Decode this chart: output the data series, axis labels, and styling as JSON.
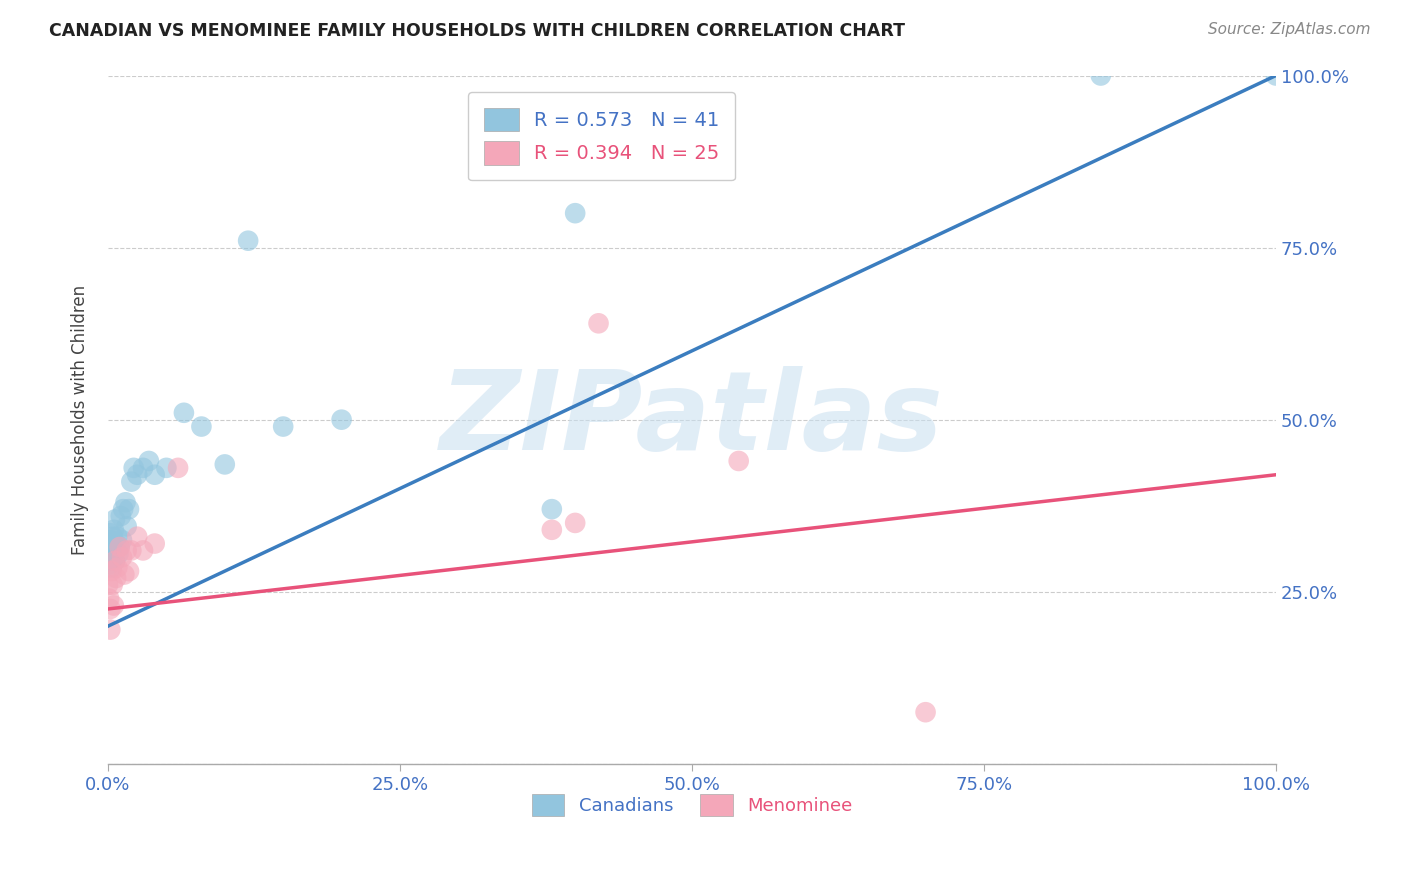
{
  "title": "CANADIAN VS MENOMINEE FAMILY HOUSEHOLDS WITH CHILDREN CORRELATION CHART",
  "source": "Source: ZipAtlas.com",
  "ylabel": "Family Households with Children",
  "watermark": "ZIPatlas",
  "canadians_x": [
    0.0,
    0.001,
    0.001,
    0.002,
    0.002,
    0.002,
    0.003,
    0.003,
    0.004,
    0.004,
    0.005,
    0.005,
    0.006,
    0.006,
    0.007,
    0.008,
    0.009,
    0.01,
    0.011,
    0.012,
    0.013,
    0.015,
    0.016,
    0.018,
    0.02,
    0.022,
    0.025,
    0.03,
    0.035,
    0.04,
    0.05,
    0.065,
    0.08,
    0.1,
    0.12,
    0.15,
    0.2,
    0.38,
    0.4,
    0.85,
    1.0
  ],
  "canadians_y": [
    0.31,
    0.32,
    0.29,
    0.335,
    0.3,
    0.325,
    0.285,
    0.315,
    0.33,
    0.295,
    0.34,
    0.31,
    0.355,
    0.295,
    0.32,
    0.33,
    0.305,
    0.315,
    0.36,
    0.325,
    0.37,
    0.38,
    0.345,
    0.37,
    0.41,
    0.43,
    0.42,
    0.43,
    0.44,
    0.42,
    0.43,
    0.51,
    0.49,
    0.435,
    0.76,
    0.49,
    0.5,
    0.37,
    0.8,
    1.0,
    1.0
  ],
  "menominee_x": [
    0.0,
    0.001,
    0.002,
    0.002,
    0.003,
    0.004,
    0.005,
    0.006,
    0.007,
    0.008,
    0.01,
    0.012,
    0.014,
    0.016,
    0.018,
    0.02,
    0.025,
    0.03,
    0.04,
    0.06,
    0.38,
    0.4,
    0.42,
    0.54,
    0.7
  ],
  "menominee_y": [
    0.26,
    0.24,
    0.225,
    0.195,
    0.28,
    0.26,
    0.23,
    0.295,
    0.27,
    0.285,
    0.315,
    0.3,
    0.275,
    0.31,
    0.28,
    0.31,
    0.33,
    0.31,
    0.32,
    0.43,
    0.34,
    0.35,
    0.64,
    0.44,
    0.075
  ],
  "can_line_x0": 0.0,
  "can_line_y0": 0.2,
  "can_line_x1": 1.0,
  "can_line_y1": 1.0,
  "men_line_x0": 0.0,
  "men_line_y0": 0.225,
  "men_line_x1": 1.0,
  "men_line_y1": 0.42,
  "R_canadian": 0.573,
  "N_canadian": 41,
  "R_menominee": 0.394,
  "N_menominee": 25,
  "canadian_color": "#92c5de",
  "menominee_color": "#f4a7b9",
  "canadian_line_color": "#3b7dbf",
  "menominee_line_color": "#e8527a",
  "xlim": [
    0.0,
    1.0
  ],
  "ylim": [
    0.0,
    1.0
  ],
  "xticks": [
    0.0,
    0.25,
    0.5,
    0.75,
    1.0
  ],
  "xtick_labels": [
    "0.0%",
    "25.0%",
    "50.0%",
    "75.0%",
    "100.0%"
  ],
  "yticks": [
    0.0,
    0.25,
    0.5,
    0.75,
    1.0
  ],
  "ytick_labels_right": [
    "",
    "25.0%",
    "50.0%",
    "75.0%",
    "100.0%"
  ],
  "background_color": "#ffffff",
  "grid_color": "#cccccc"
}
